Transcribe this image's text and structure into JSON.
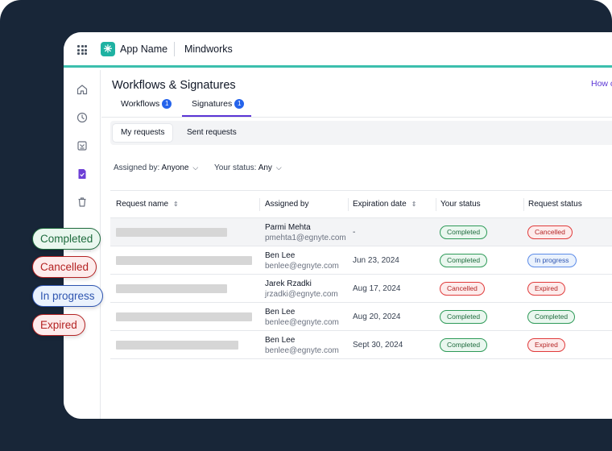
{
  "topbar": {
    "app_name": "App Name",
    "workspace": "Mindworks"
  },
  "sidebar": {
    "icons": [
      "home-icon",
      "clock-icon",
      "inbox-icon",
      "signature-document-icon",
      "trash-icon"
    ],
    "active_icon": "signature-document-icon",
    "expand_icon": "double-chevron-right-icon"
  },
  "page": {
    "title": "Workflows & Signatures",
    "help_link": "How c"
  },
  "tabs": [
    {
      "label": "Workflows",
      "count": "1"
    },
    {
      "label": "Signatures",
      "count": "1"
    }
  ],
  "active_tab": "Signatures",
  "segments": [
    {
      "label": "My requests"
    },
    {
      "label": "Sent requests"
    }
  ],
  "filters": {
    "assigned_by_label": "Assigned by:",
    "assigned_by_value": "Anyone",
    "status_label": "Your status:",
    "status_value": "Any"
  },
  "table": {
    "columns": [
      "Request name",
      "Assigned by",
      "Expiration date",
      "Your status",
      "Request status"
    ],
    "rows": [
      {
        "name": "Parmi Mehta",
        "email": "pmehta1@egnyte.com",
        "date": "-",
        "your_status": "Completed",
        "request_status": "Cancelled"
      },
      {
        "name": "Ben Lee",
        "email": "benlee@egnyte.com",
        "date": "Jun 23, 2024",
        "your_status": "Completed",
        "request_status": "In progress"
      },
      {
        "name": "Jarek Rzadki",
        "email": "jrzadki@egnyte.com",
        "date": "Aug 17, 2024",
        "your_status": "Cancelled",
        "request_status": "Expired"
      },
      {
        "name": "Ben Lee",
        "email": "benlee@egnyte.com",
        "date": "Aug 20, 2024",
        "your_status": "Completed",
        "request_status": "Completed"
      },
      {
        "name": "Ben Lee",
        "email": "benlee@egnyte.com",
        "date": "Sept 30, 2024",
        "your_status": "Completed",
        "request_status": "Expired"
      }
    ]
  },
  "legend": [
    {
      "label": "Completed"
    },
    {
      "label": "Cancelled"
    },
    {
      "label": "In progress"
    },
    {
      "label": "Expired"
    }
  ],
  "colors": {
    "brand_teal": "#1fb2a2",
    "accent_purple": "#5b35d5",
    "badge_blue": "#2563eb",
    "background_navy": "#182638",
    "completed_green": "#2e9a58",
    "cancelled_red": "#e03b3b",
    "in_progress_blue": "#5b8be8"
  }
}
